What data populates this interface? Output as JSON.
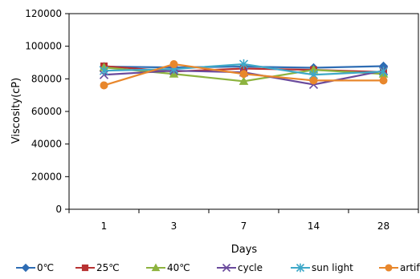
{
  "chart_data": {
    "type": "line",
    "title": "",
    "xlabel": "Days",
    "ylabel": "Viscosity(cP)",
    "categories": [
      "1",
      "3",
      "7",
      "14",
      "28"
    ],
    "ylim": [
      0,
      120000
    ],
    "yticks": [
      0,
      20000,
      40000,
      60000,
      80000,
      100000,
      120000
    ],
    "ytick_labels": [
      "0",
      "20000",
      "40000",
      "60000",
      "80000",
      "100000",
      "120000"
    ],
    "grid": false,
    "legend_position": "bottom",
    "series": [
      {
        "name": "0℃",
        "color": "#2e6db4",
        "marker": "diamond",
        "values": [
          87500,
          87000,
          87500,
          86800,
          87800
        ]
      },
      {
        "name": "25℃",
        "color": "#b83232",
        "marker": "square",
        "values": [
          87800,
          84500,
          86300,
          85500,
          84200
        ]
      },
      {
        "name": "40℃",
        "color": "#8db33f",
        "marker": "triangle",
        "values": [
          87000,
          83000,
          78500,
          85500,
          83000
        ]
      },
      {
        "name": "cycle",
        "color": "#6a4a9c",
        "marker": "x",
        "values": [
          82500,
          85000,
          84000,
          76500,
          85000
        ]
      },
      {
        "name": "sun light",
        "color": "#3ea8c8",
        "marker": "star",
        "values": [
          85000,
          86000,
          89000,
          82500,
          84500
        ]
      },
      {
        "name": "artificial light",
        "color": "#e8872c",
        "marker": "circle",
        "values": [
          76000,
          89000,
          83000,
          79000,
          79000
        ]
      }
    ]
  }
}
